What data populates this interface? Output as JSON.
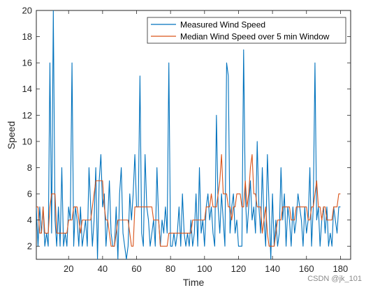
{
  "chart_data": {
    "type": "line",
    "xlabel": "Time",
    "ylabel": "Speed",
    "xlim": [
      1,
      186
    ],
    "ylim": [
      1,
      20
    ],
    "xticks": [
      20,
      40,
      60,
      80,
      100,
      120,
      140,
      160,
      180
    ],
    "yticks": [
      2,
      4,
      6,
      8,
      10,
      12,
      14,
      16,
      18,
      20
    ],
    "grid": false,
    "legend_position": "top-right",
    "series": [
      {
        "name": "Measured Wind Speed",
        "color": "#0072BD",
        "values": [
          5,
          2,
          5,
          3,
          5,
          2,
          3,
          2,
          16,
          3,
          20,
          4,
          2,
          5,
          2,
          8,
          2,
          3,
          2,
          5,
          4,
          16,
          2,
          5,
          4,
          2,
          5,
          2,
          3,
          4,
          2,
          8,
          5,
          2,
          4,
          8,
          1,
          7,
          9,
          5,
          6,
          2,
          4,
          7,
          3,
          2,
          2,
          5,
          1,
          6,
          8,
          3,
          2,
          1,
          2,
          6,
          4,
          6,
          9,
          5,
          5,
          15,
          3,
          2,
          9,
          5,
          4,
          2,
          3,
          4,
          2,
          8,
          4,
          2,
          4,
          3,
          5,
          3,
          16,
          2,
          2,
          3,
          2,
          3,
          5,
          2,
          6,
          3,
          2,
          3,
          2,
          4,
          2,
          3,
          6,
          2,
          8,
          3,
          4,
          2,
          5,
          6,
          4,
          5,
          3,
          2,
          12,
          5,
          3,
          6,
          4,
          2,
          16,
          15,
          3,
          5,
          6,
          3,
          4,
          2,
          2,
          2,
          17,
          6,
          3,
          5,
          7,
          4,
          5,
          3,
          10,
          5,
          3,
          8,
          4,
          2,
          9,
          5,
          1,
          6,
          2,
          4,
          2,
          3,
          8,
          4,
          6,
          2,
          5,
          4,
          2,
          5,
          3,
          4,
          6,
          5,
          4,
          2,
          5,
          3,
          4,
          8,
          2,
          5,
          16,
          4,
          5,
          2,
          4,
          5,
          3,
          5,
          2,
          3,
          2,
          5,
          4,
          3,
          5,
          5
        ]
      },
      {
        "name": "Median Wind Speed over 5 min Window",
        "color": "#D95319",
        "values": [
          5,
          5,
          3,
          3,
          5,
          3,
          3,
          3,
          5,
          6,
          6,
          6,
          3,
          3,
          3,
          3,
          3,
          3,
          3,
          4,
          4,
          4,
          5,
          5,
          5,
          4,
          3,
          4,
          4,
          4,
          4,
          4,
          4,
          5,
          6,
          7,
          7,
          7,
          7,
          7,
          5,
          4,
          4,
          3,
          2,
          2,
          2,
          3,
          4,
          4,
          4,
          4,
          4,
          4,
          4,
          3,
          2,
          2,
          5,
          5,
          5,
          5,
          5,
          5,
          5,
          5,
          5,
          5,
          5,
          4,
          4,
          4,
          4,
          2,
          2,
          2,
          2,
          2,
          3,
          3,
          3,
          3,
          3,
          3,
          3,
          3,
          3,
          3,
          3,
          3,
          3,
          3,
          4,
          4,
          4,
          4,
          4,
          4,
          4,
          4,
          5,
          5,
          5,
          6,
          5,
          5,
          5,
          6,
          7,
          9,
          6,
          6,
          6,
          5,
          5,
          4,
          5,
          5,
          6,
          6,
          6,
          5,
          5,
          7,
          5,
          6,
          8,
          9,
          6,
          6,
          5,
          5,
          5,
          3,
          4,
          5,
          3,
          2,
          2,
          2,
          2,
          3,
          4,
          4,
          4,
          5,
          5,
          5,
          5,
          5,
          4,
          4,
          4,
          5,
          5,
          5,
          5,
          5,
          5,
          5,
          4,
          4,
          5,
          5,
          6,
          7,
          5,
          5,
          4,
          5,
          5,
          4,
          4,
          4,
          4,
          5,
          5,
          5,
          6,
          6
        ]
      }
    ]
  },
  "watermark": "CSDN @jk_101"
}
